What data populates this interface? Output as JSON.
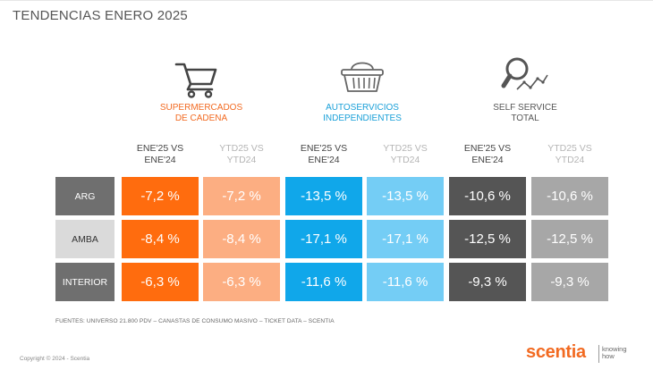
{
  "header": {
    "title": "TENDENCIAS  ENERO 2025"
  },
  "groups": [
    {
      "title_l1": "SUPERMERCADOS",
      "title_l2": "DE CADENA",
      "color": "#f26a21",
      "icon": "shopping-cart-icon"
    },
    {
      "title_l1": "AUTOSERVICIOS",
      "title_l2": "INDEPENDIENTES",
      "color": "#1aa0d8",
      "icon": "shopping-basket-icon"
    },
    {
      "title_l1": "SELF SERVICE",
      "title_l2": "TOTAL",
      "color": "#555555",
      "icon": "magnifier-trend-icon"
    }
  ],
  "chart_data": {
    "type": "table",
    "title": "TENDENCIAS  ENERO 2025",
    "columns": [
      {
        "group": "SUPERMERCADOS DE CADENA",
        "label_l1": "ENE'25 VS",
        "label_l2": "ENE'24",
        "color": "#ff6c0e"
      },
      {
        "group": "SUPERMERCADOS DE CADENA",
        "label_l1": "YTD25 VS",
        "label_l2": "YTD24",
        "color": "#fcae82"
      },
      {
        "group": "AUTOSERVICIOS INDEPENDIENTES",
        "label_l1": "ENE'25 VS",
        "label_l2": "ENE'24",
        "color": "#10a7ea"
      },
      {
        "group": "AUTOSERVICIOS INDEPENDIENTES",
        "label_l1": "YTD25 VS",
        "label_l2": "YTD24",
        "color": "#74cdf5"
      },
      {
        "group": "SELF SERVICE TOTAL",
        "label_l1": "ENE'25 VS",
        "label_l2": "ENE'24",
        "color": "#555555"
      },
      {
        "group": "SELF SERVICE TOTAL",
        "label_l1": "YTD25 VS",
        "label_l2": "YTD24",
        "color": "#a7a7a7"
      }
    ],
    "rows": [
      {
        "label": "ARG",
        "values": [
          "-7,2 %",
          "-7,2 %",
          "-13,5 %",
          "-13,5 %",
          "-10,6 %",
          "-10,6 %"
        ]
      },
      {
        "label": "AMBA",
        "values": [
          "-8,4 %",
          "-8,4 %",
          "-17,1 %",
          "-17,1 %",
          "-12,5 %",
          "-12,5 %"
        ]
      },
      {
        "label": "INTERIOR",
        "values": [
          "-6,3 %",
          "-6,3 %",
          "-11,6 %",
          "-11,6 %",
          "-9,3 %",
          "-9,3 %"
        ]
      }
    ]
  },
  "footer": {
    "sources": "FUENTES: UNIVERSO 21.800 PDV – CANASTAS DE CONSUMO MASIVO – TICKET DATA  – SCENTIA",
    "copyright": "Copyright © 2024 - Scentia",
    "logo": "scentia",
    "tagline_l1": "knowing",
    "tagline_l2": "how"
  }
}
